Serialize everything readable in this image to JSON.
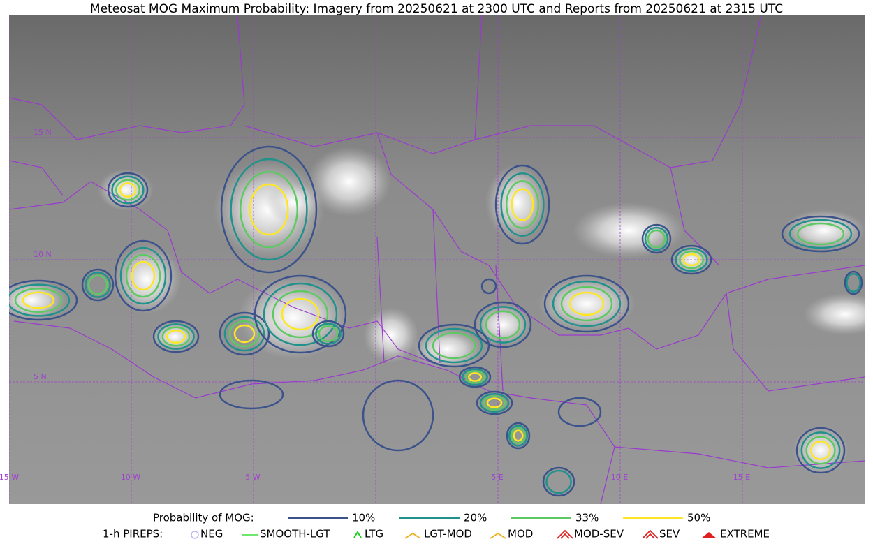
{
  "title": "Meteosat MOG Maximum Probability: Imagery from 20250621 at 2300 UTC and Reports from 20250621 at 2315 UTC",
  "map": {
    "lat_labels": [
      "15 N",
      "10 N",
      "5 N"
    ],
    "lon_labels": [
      "15 W",
      "10 W",
      "5 W",
      "5 E",
      "10 E",
      "15 E"
    ]
  },
  "legend": {
    "probability_title": "Probability of MOG:",
    "probability_levels": [
      {
        "label": "10%",
        "color": "#3b528b"
      },
      {
        "label": "20%",
        "color": "#21918c"
      },
      {
        "label": "33%",
        "color": "#5ec962"
      },
      {
        "label": "50%",
        "color": "#fde725"
      }
    ],
    "pireps_title": "1-h PIREPS:",
    "pireps": [
      "NEG",
      "SMOOTH-LGT",
      "LTG",
      "LGT-MOD",
      "MOD",
      "MOD-SEV",
      "SEV",
      "EXTREME"
    ]
  }
}
